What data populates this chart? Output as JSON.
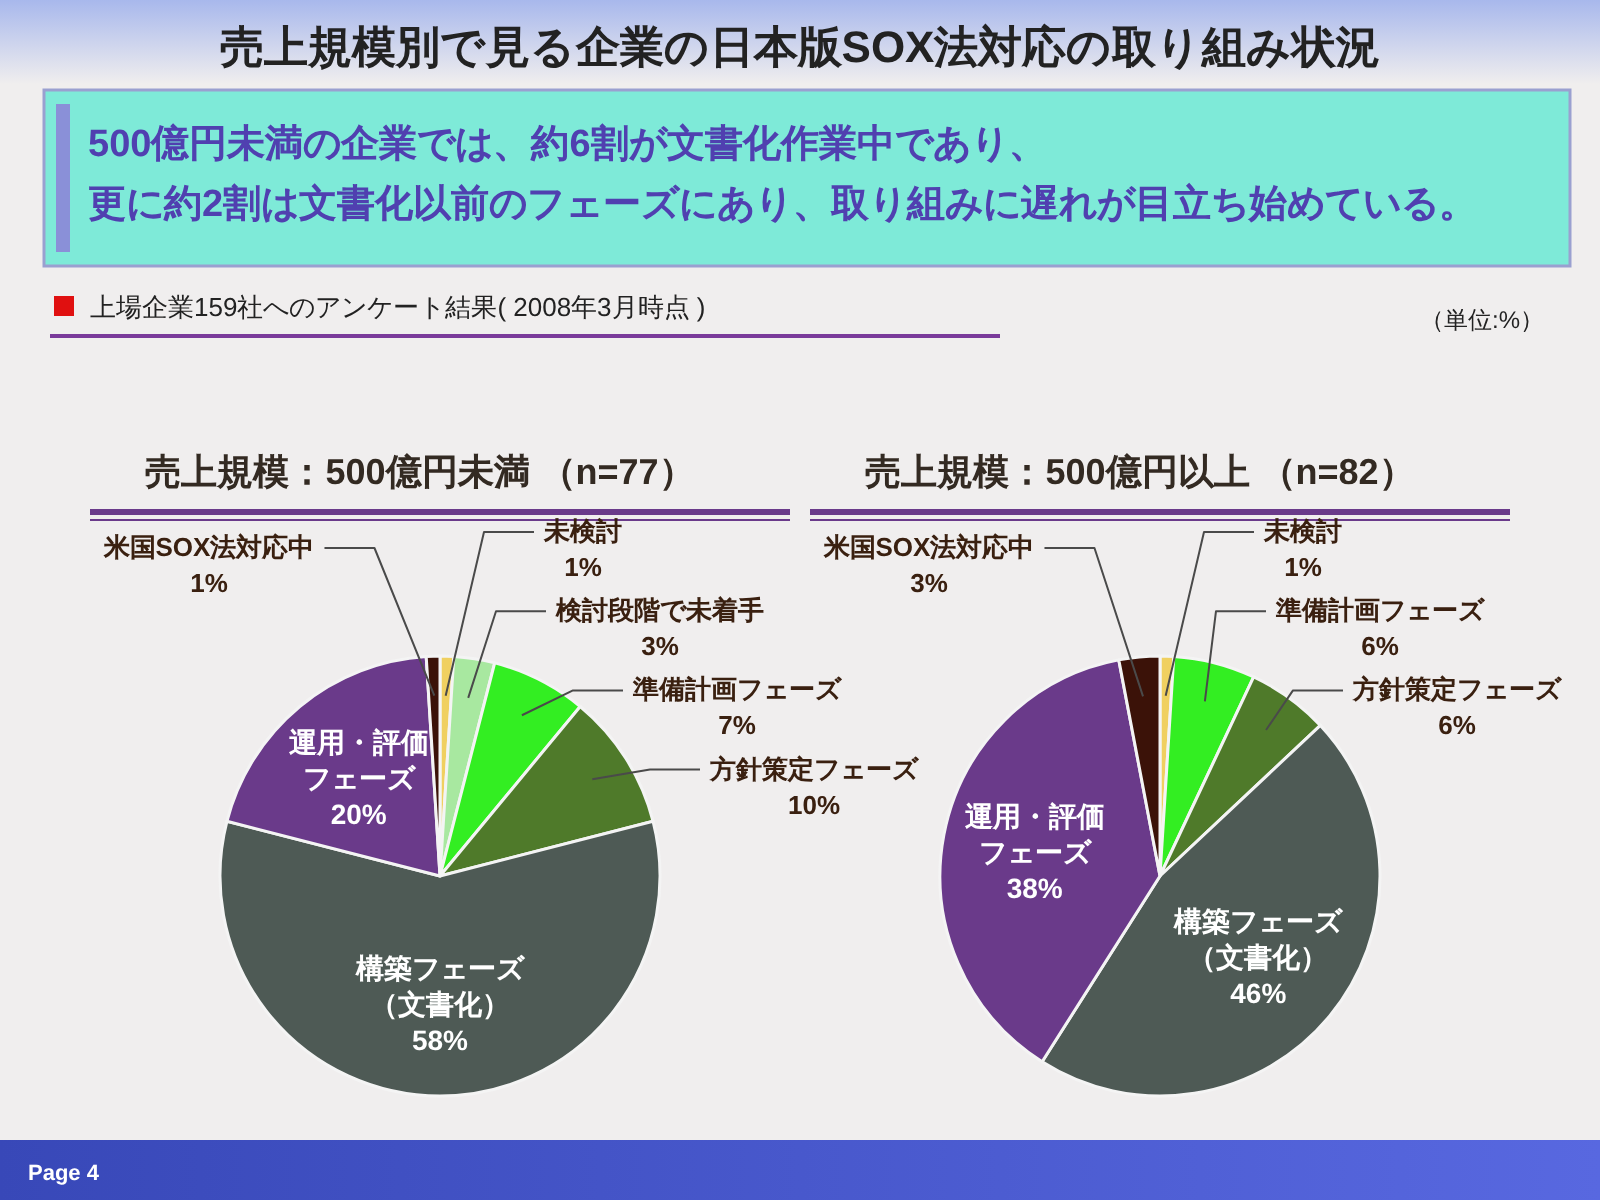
{
  "chart_data": [
    {
      "type": "other",
      "title": "売上規模別で見る企業の日本版SOX法対応の取り組み状況",
      "subtitle": "上場企業159社へのアンケート結果( 2008年3月時点 )",
      "annotations": [
        "500億円未満の企業では、約6割が文書化作業中であり、",
        "更に約2割は文書化以前のフェーズにあり、取り組みに遅れが目立ち始めている。",
        "（単位:%）",
        "Page 4"
      ]
    },
    {
      "type": "pie",
      "title": "売上規模：500億円未満 （n=77）",
      "categories": [
        "未検討",
        "検討段階で未着手",
        "準備計画フェーズ",
        "方針策定フェーズ",
        "構築フェーズ（文書化）",
        "運用・評価フェーズ",
        "米国SOX法対応中"
      ],
      "values": [
        1,
        3,
        7,
        10,
        58,
        20,
        1
      ],
      "colors": [
        "#f0d060",
        "#a8e8a0",
        "#33ee22",
        "#4f7a2a",
        "#4e5a55",
        "#6a3a8a",
        "#3b1208"
      ],
      "value_labels": [
        "1%",
        "3%",
        "7%",
        "10%",
        "58%",
        "20%",
        "1%"
      ]
    },
    {
      "type": "pie",
      "title": "売上規模：500億円以上 （n=82）",
      "categories": [
        "未検討",
        "準備計画フェーズ",
        "方針策定フェーズ",
        "構築フェーズ（文書化）",
        "運用・評価フェーズ",
        "米国SOX法対応中"
      ],
      "values": [
        1,
        6,
        6,
        46,
        38,
        3
      ],
      "colors": [
        "#f0d060",
        "#33ee22",
        "#4f7a2a",
        "#4e5a55",
        "#6a3a8a",
        "#3b1208"
      ],
      "value_labels": [
        "1%",
        "6%",
        "6%",
        "46%",
        "38%",
        "3%"
      ]
    }
  ]
}
